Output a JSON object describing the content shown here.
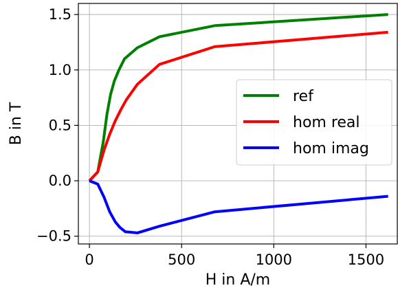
{
  "chart_data": {
    "type": "line",
    "xlabel": "H in A/m",
    "ylabel": "B in T",
    "xlim": [
      -60,
      1670
    ],
    "ylim": [
      -0.57,
      1.6
    ],
    "xticks": [
      {
        "value": 0,
        "label": "0"
      },
      {
        "value": 500,
        "label": "500"
      },
      {
        "value": 1000,
        "label": "1000"
      },
      {
        "value": 1500,
        "label": "1500"
      }
    ],
    "yticks": [
      {
        "value": -0.5,
        "label": "−0.5"
      },
      {
        "value": 0.0,
        "label": "0.0"
      },
      {
        "value": 0.5,
        "label": "0.5"
      },
      {
        "value": 1.0,
        "label": "1.0"
      },
      {
        "value": 1.5,
        "label": "1.5"
      }
    ],
    "grid": true,
    "legend_position": "center-right",
    "series": [
      {
        "name": "ref",
        "color": "#008000",
        "x": [
          0,
          45,
          75,
          95,
          115,
          135,
          160,
          190,
          260,
          380,
          680,
          1620
        ],
        "y": [
          0.0,
          0.08,
          0.35,
          0.6,
          0.78,
          0.9,
          1.0,
          1.1,
          1.2,
          1.3,
          1.4,
          1.5
        ]
      },
      {
        "name": "hom real",
        "color": "#ff0000",
        "x": [
          0,
          45,
          80,
          110,
          140,
          170,
          200,
          260,
          380,
          680,
          1620
        ],
        "y": [
          0.0,
          0.08,
          0.28,
          0.42,
          0.54,
          0.64,
          0.73,
          0.87,
          1.05,
          1.21,
          1.34
        ]
      },
      {
        "name": "hom imag",
        "color": "#0000ff",
        "x": [
          0,
          45,
          80,
          110,
          140,
          165,
          195,
          260,
          380,
          680,
          1620
        ],
        "y": [
          0.0,
          -0.03,
          -0.15,
          -0.28,
          -0.37,
          -0.42,
          -0.46,
          -0.47,
          -0.41,
          -0.28,
          -0.14
        ]
      }
    ]
  }
}
